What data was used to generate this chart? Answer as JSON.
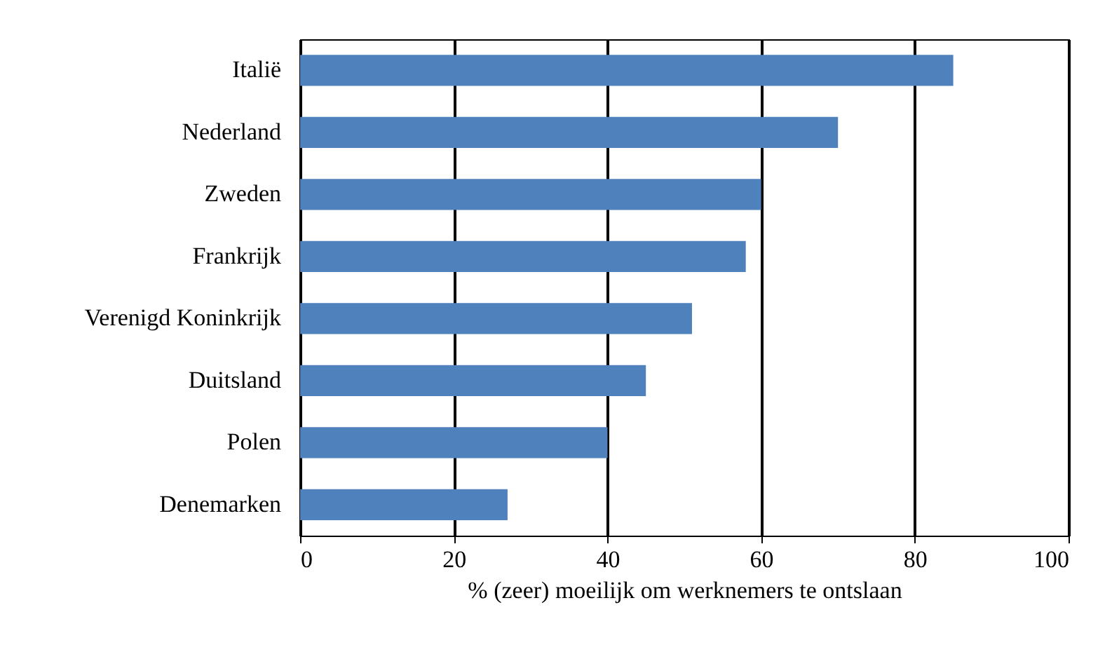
{
  "chart_data": {
    "type": "bar",
    "orientation": "horizontal",
    "xlabel": "% (zeer) moeilijk om werknemers te ontslaan",
    "categories": [
      "Italië",
      "Nederland",
      "Zweden",
      "Frankrijk",
      "Verenigd Koninkrijk",
      "Duitsland",
      "Polen",
      "Denemarken"
    ],
    "values": [
      85,
      70,
      60,
      58,
      51,
      45,
      40,
      27
    ],
    "color": "#4f81bd",
    "xlim": [
      0,
      100
    ],
    "xticks": [
      0,
      20,
      40,
      60,
      80,
      100
    ],
    "grid": "x"
  }
}
